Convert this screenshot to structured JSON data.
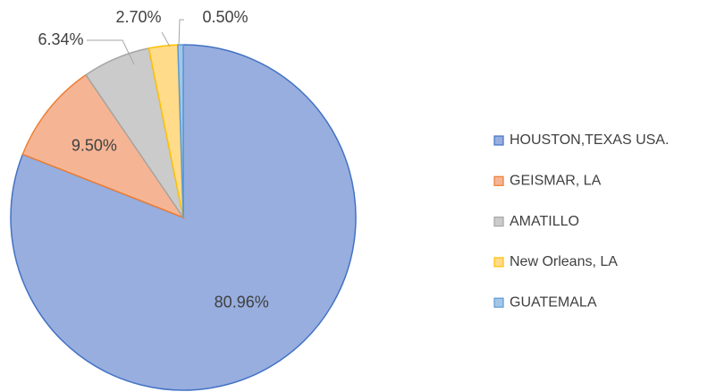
{
  "chart_data": {
    "type": "pie",
    "categories": [
      "HOUSTON,TEXAS USA.",
      "GEISMAR, LA",
      "AMATILLO",
      "New Orleans, LA",
      "GUATEMALA"
    ],
    "values": [
      80.96,
      9.5,
      6.34,
      2.7,
      0.5
    ],
    "value_labels": [
      "80.96%",
      "9.50%",
      "6.34%",
      "2.70%",
      "0.50%"
    ],
    "colors": [
      "#97aedf",
      "#f5b595",
      "#cbcbcb",
      "#ffdb8a",
      "#a3c6e8"
    ],
    "edge_colors": [
      "#4472c4",
      "#ed7d31",
      "#a5a5a5",
      "#ffc000",
      "#5b9bd5"
    ],
    "legend": "right"
  }
}
